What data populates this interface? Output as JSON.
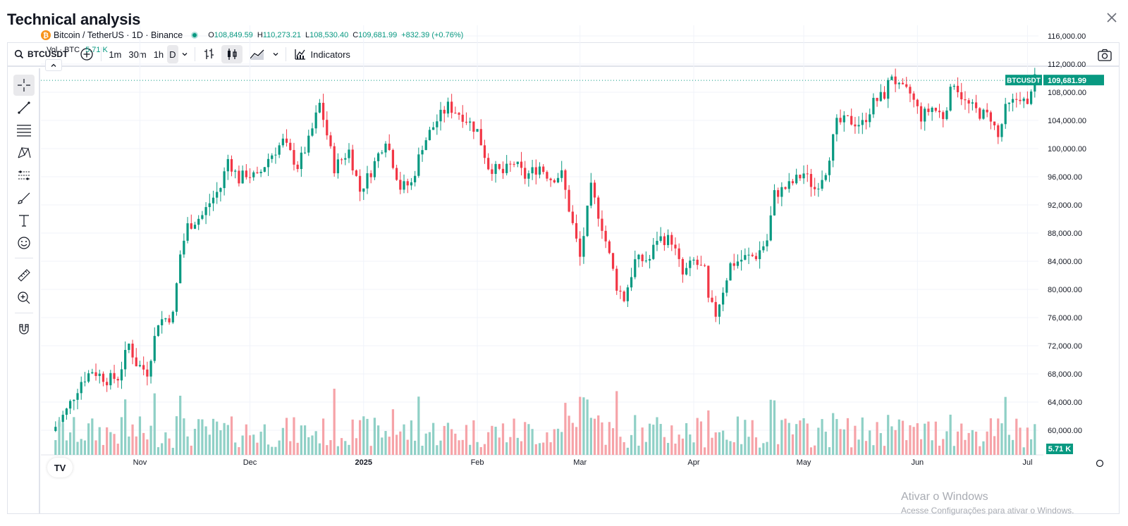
{
  "modal": {
    "title": "Technical analysis",
    "close_icon": "close-icon"
  },
  "toolbar": {
    "symbol": "BTCUSDT",
    "intervals": [
      "1m",
      "30m",
      "1h",
      "D"
    ],
    "active_interval": "D",
    "indicators_label": "Indicators"
  },
  "legend": {
    "pair_title": "Bitcoin / TetherUS · 1D · Binance",
    "open_label": "O",
    "open": "108,849.59",
    "high_label": "H",
    "high": "110,273.21",
    "low_label": "L",
    "low": "108,530.40",
    "close_label": "C",
    "close": "109,681.99",
    "change": "+832.39 (+0.76%)",
    "vol_label": "Vol · BTC",
    "vol_value": "5.71 K"
  },
  "price_label": {
    "symbol": "BTCUSDT",
    "price": "109,681.99"
  },
  "volume_label": "5.71 K",
  "logo_text": "TV",
  "colors": {
    "up": "#089981",
    "down": "#f23645",
    "up_volume": "#8fd0c6",
    "down_volume": "#f6a3a8",
    "grid": "#f0f3fa",
    "text": "#131722"
  },
  "chart_data": {
    "type": "candlestick",
    "title": "Bitcoin / TetherUS · 1D · Binance",
    "y_ticks": [
      60000,
      64000,
      68000,
      72000,
      76000,
      80000,
      84000,
      88000,
      92000,
      96000,
      100000,
      104000,
      108000,
      112000,
      116000
    ],
    "ylim": [
      56500,
      117500
    ],
    "x_tick_labels": [
      "Nov",
      "Dec",
      "2025",
      "Feb",
      "Mar",
      "Apr",
      "May",
      "Jun",
      "Jul"
    ],
    "x_tick_days": [
      0,
      30,
      61,
      92,
      120,
      151,
      181,
      212,
      242
    ],
    "date_range": [
      "2024-10-09",
      "2025-07-03"
    ],
    "last_price": 109681.99,
    "series_close": [
      {
        "day": -23,
        "close": 60500
      },
      {
        "day": -20,
        "close": 62800
      },
      {
        "day": -16,
        "close": 67000
      },
      {
        "day": -13,
        "close": 68500
      },
      {
        "day": -9,
        "close": 67200
      },
      {
        "day": -6,
        "close": 67500
      },
      {
        "day": -3,
        "close": 72200
      },
      {
        "day": -1,
        "close": 69500
      },
      {
        "day": 2,
        "close": 68300
      },
      {
        "day": 5,
        "close": 75500
      },
      {
        "day": 9,
        "close": 76300
      },
      {
        "day": 11,
        "close": 85000
      },
      {
        "day": 13,
        "close": 89000
      },
      {
        "day": 17,
        "close": 90500
      },
      {
        "day": 19,
        "close": 92300
      },
      {
        "day": 22,
        "close": 94500
      },
      {
        "day": 24,
        "close": 98500
      },
      {
        "day": 27,
        "close": 95600
      },
      {
        "day": 29,
        "close": 96500
      },
      {
        "day": 32,
        "close": 95800
      },
      {
        "day": 35,
        "close": 98600
      },
      {
        "day": 39,
        "close": 101000
      },
      {
        "day": 43,
        "close": 97500
      },
      {
        "day": 46,
        "close": 101000
      },
      {
        "day": 49,
        "close": 106300
      },
      {
        "day": 50,
        "close": 104300
      },
      {
        "day": 53,
        "close": 97300
      },
      {
        "day": 57,
        "close": 99700
      },
      {
        "day": 60,
        "close": 94000
      },
      {
        "day": 63,
        "close": 96800
      },
      {
        "day": 67,
        "close": 101500
      },
      {
        "day": 71,
        "close": 94500
      },
      {
        "day": 74,
        "close": 95000
      },
      {
        "day": 77,
        "close": 100500
      },
      {
        "day": 81,
        "close": 104000
      },
      {
        "day": 84,
        "close": 106000
      },
      {
        "day": 88,
        "close": 104700
      },
      {
        "day": 92,
        "close": 102500
      },
      {
        "day": 95,
        "close": 97500
      },
      {
        "day": 99,
        "close": 96500
      },
      {
        "day": 102,
        "close": 98000
      },
      {
        "day": 105,
        "close": 96000
      },
      {
        "day": 109,
        "close": 97500
      },
      {
        "day": 112,
        "close": 95800
      },
      {
        "day": 115,
        "close": 96300
      },
      {
        "day": 117,
        "close": 91500
      },
      {
        "day": 120,
        "close": 84500
      },
      {
        "day": 123,
        "close": 94300
      },
      {
        "day": 126,
        "close": 89000
      },
      {
        "day": 130,
        "close": 80500
      },
      {
        "day": 132,
        "close": 78700
      },
      {
        "day": 135,
        "close": 84000
      },
      {
        "day": 139,
        "close": 84300
      },
      {
        "day": 141,
        "close": 87300
      },
      {
        "day": 145,
        "close": 87000
      },
      {
        "day": 148,
        "close": 82000
      },
      {
        "day": 151,
        "close": 84000
      },
      {
        "day": 154,
        "close": 82500
      },
      {
        "day": 155,
        "close": 78300
      },
      {
        "day": 157,
        "close": 76500
      },
      {
        "day": 161,
        "close": 83500
      },
      {
        "day": 165,
        "close": 84500
      },
      {
        "day": 168,
        "close": 84800
      },
      {
        "day": 171,
        "close": 87000
      },
      {
        "day": 173,
        "close": 93500
      },
      {
        "day": 177,
        "close": 94700
      },
      {
        "day": 181,
        "close": 96500
      },
      {
        "day": 184,
        "close": 94300
      },
      {
        "day": 187,
        "close": 97000
      },
      {
        "day": 190,
        "close": 103500
      },
      {
        "day": 193,
        "close": 104000
      },
      {
        "day": 197,
        "close": 103500
      },
      {
        "day": 200,
        "close": 106500
      },
      {
        "day": 203,
        "close": 107700
      },
      {
        "day": 205,
        "close": 110600
      },
      {
        "day": 207,
        "close": 108500
      },
      {
        "day": 210,
        "close": 107800
      },
      {
        "day": 213,
        "close": 104500
      },
      {
        "day": 216,
        "close": 105800
      },
      {
        "day": 219,
        "close": 104600
      },
      {
        "day": 222,
        "close": 109600
      },
      {
        "day": 225,
        "close": 106500
      },
      {
        "day": 229,
        "close": 105000
      },
      {
        "day": 232,
        "close": 104500
      },
      {
        "day": 234,
        "close": 101500
      },
      {
        "day": 236,
        "close": 105500
      },
      {
        "day": 240,
        "close": 107500
      },
      {
        "day": 242,
        "close": 105800
      },
      {
        "day": 243,
        "close": 108800
      },
      {
        "day": 244,
        "close": 109682
      }
    ]
  },
  "watermark": {
    "line1": "Ativar o Windows",
    "line2": "Acesse Configurações para ativar o Windows."
  }
}
